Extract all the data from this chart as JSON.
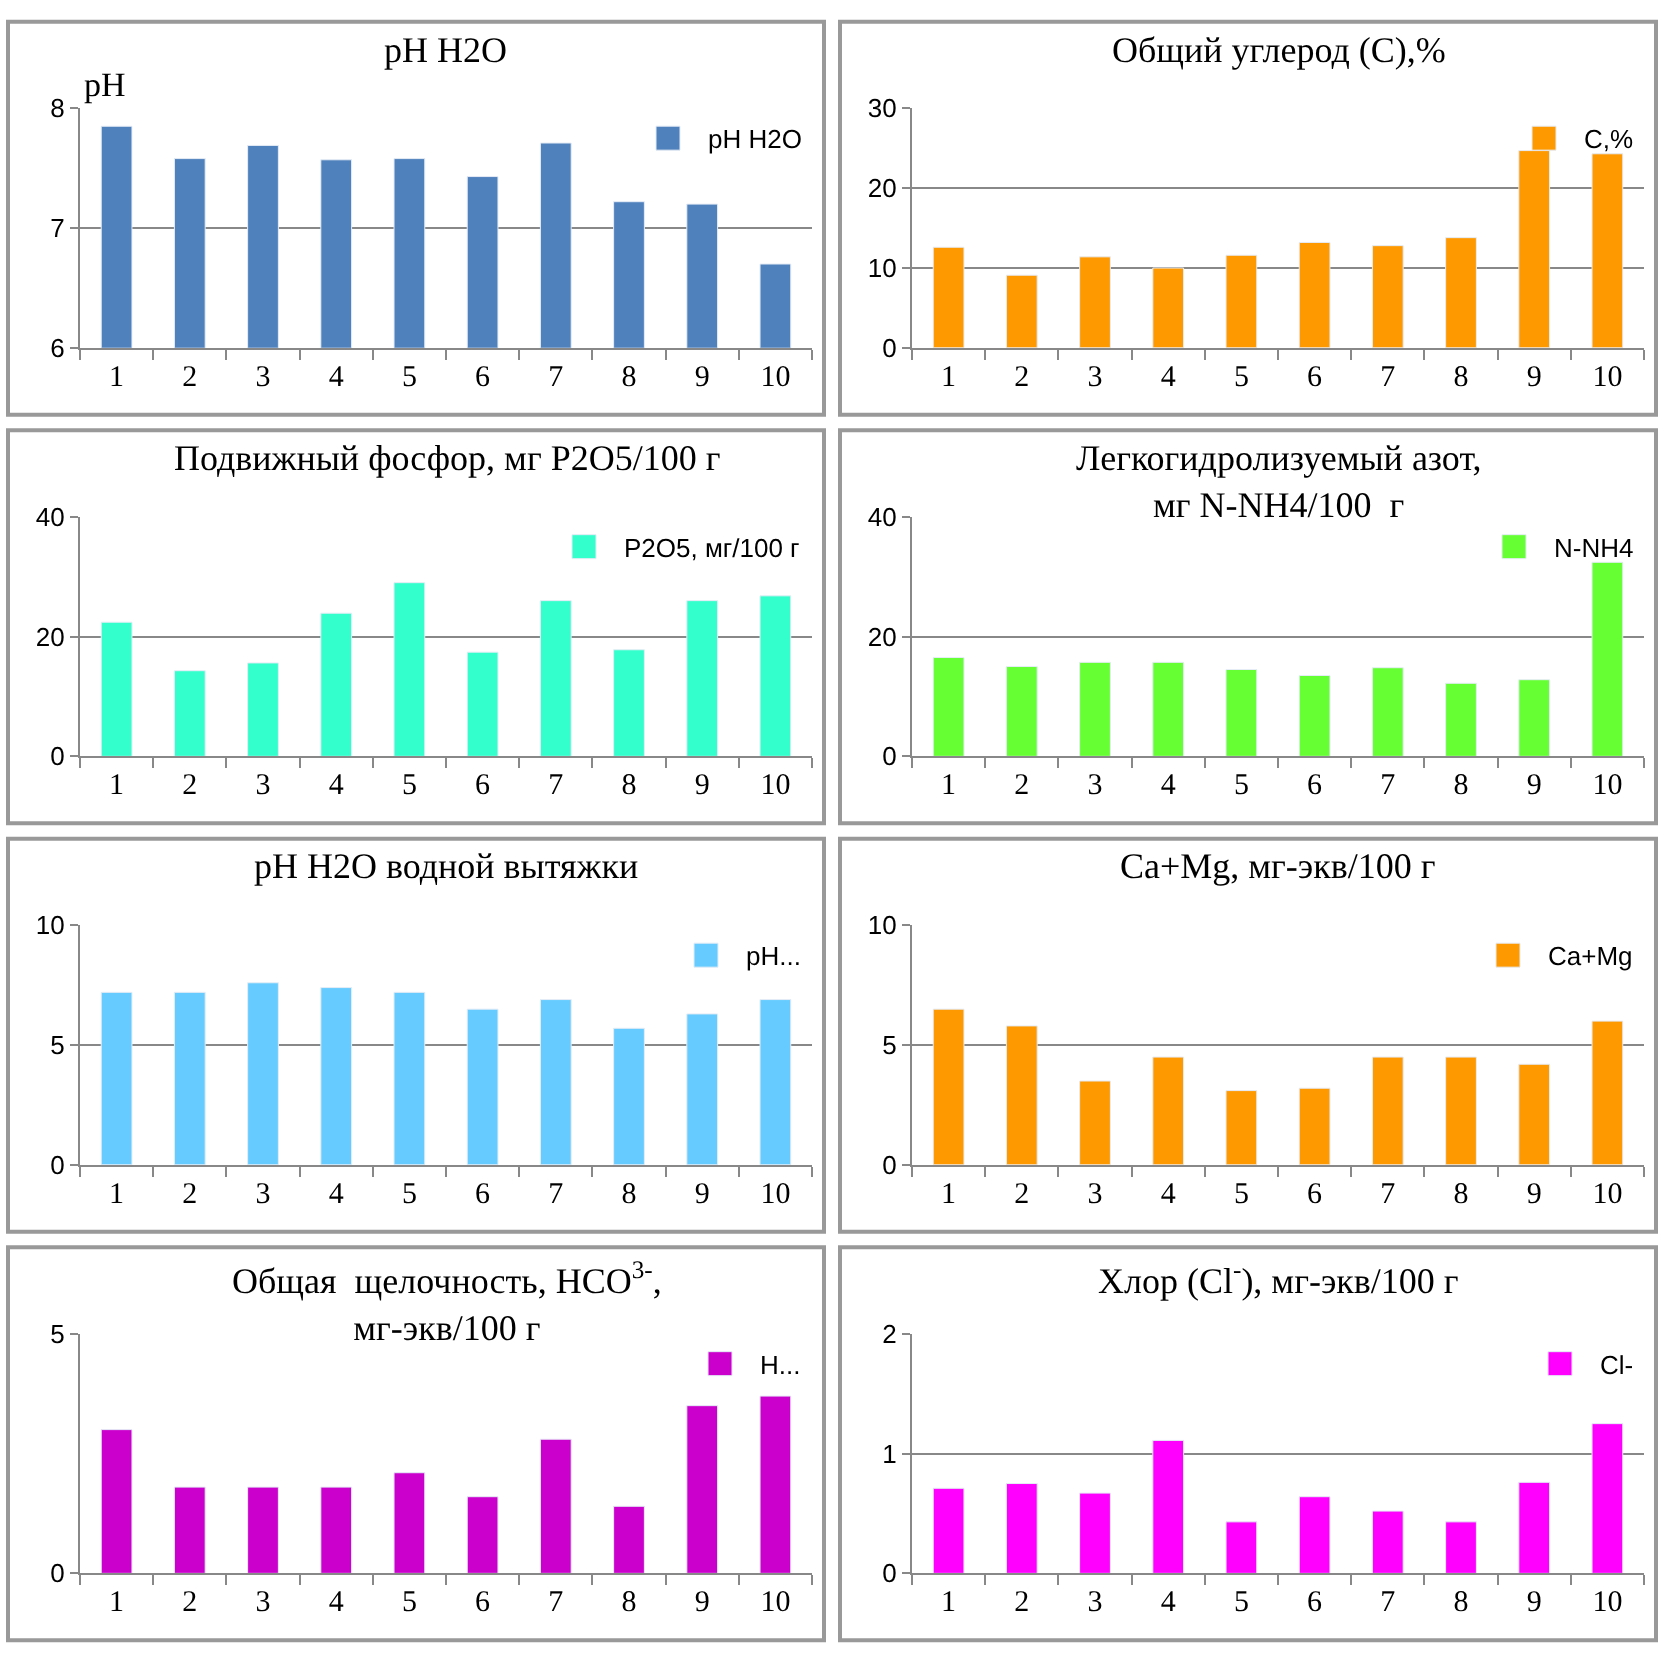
{
  "chart_data": [
    {
      "type": "bar",
      "title": "pH H2O",
      "ylabel": "pH",
      "categories": [
        "1",
        "2",
        "3",
        "4",
        "5",
        "6",
        "7",
        "8",
        "9",
        "10"
      ],
      "series": [
        {
          "name": "pH H2O",
          "color": "#4f81bd",
          "values": [
            7.85,
            7.58,
            7.69,
            7.57,
            7.58,
            7.43,
            7.71,
            7.22,
            7.2,
            6.7
          ]
        }
      ],
      "ylim": [
        6,
        8
      ],
      "yticks": [
        6,
        7,
        8
      ],
      "grid": "y",
      "legend": "top right"
    },
    {
      "type": "bar",
      "title": "Общий углерод (С),%",
      "categories": [
        "1",
        "2",
        "3",
        "4",
        "5",
        "6",
        "7",
        "8",
        "9",
        "10"
      ],
      "series": [
        {
          "name": "С,%",
          "color": "#ff9900",
          "values": [
            12.6,
            9.1,
            11.4,
            10.0,
            11.6,
            13.2,
            12.8,
            13.8,
            24.7,
            24.3
          ]
        }
      ],
      "ylim": [
        0,
        30
      ],
      "yticks": [
        0,
        10,
        20,
        30
      ],
      "grid": "y",
      "legend": "top right"
    },
    {
      "type": "bar",
      "title": "Подвижный фосфор, мг P2O5/100 г",
      "categories": [
        "1",
        "2",
        "3",
        "4",
        "5",
        "6",
        "7",
        "8",
        "9",
        "10"
      ],
      "series": [
        {
          "name": "P2O5, мг/100 г",
          "color": "#33ffcc",
          "values": [
            22.4,
            14.3,
            15.6,
            23.9,
            29.0,
            17.4,
            26.0,
            17.8,
            26.0,
            26.8
          ]
        }
      ],
      "ylim": [
        0,
        40
      ],
      "yticks": [
        0,
        20,
        40
      ],
      "grid": "y",
      "legend": "top right"
    },
    {
      "type": "bar",
      "title": "Легкогидролизуемый азот,\nмг N-NH4/100  г",
      "categories": [
        "1",
        "2",
        "3",
        "4",
        "5",
        "6",
        "7",
        "8",
        "9",
        "10"
      ],
      "series": [
        {
          "name": "N-NH4",
          "color": "#66ff33",
          "values": [
            16.5,
            15.0,
            15.7,
            15.7,
            14.5,
            13.5,
            14.8,
            12.2,
            12.8,
            32.4
          ]
        }
      ],
      "ylim": [
        0,
        40
      ],
      "yticks": [
        0,
        20,
        40
      ],
      "grid": "y",
      "legend": "top right"
    },
    {
      "type": "bar",
      "title": "pH H2O водной вытяжки",
      "categories": [
        "1",
        "2",
        "3",
        "4",
        "5",
        "6",
        "7",
        "8",
        "9",
        "10"
      ],
      "series": [
        {
          "name": "pH...",
          "color": "#66ccff",
          "values": [
            7.2,
            7.2,
            7.6,
            7.4,
            7.2,
            6.5,
            6.9,
            5.7,
            6.3,
            6.9
          ]
        }
      ],
      "ylim": [
        0,
        10
      ],
      "yticks": [
        0,
        5,
        10
      ],
      "grid": "y",
      "legend": "top right"
    },
    {
      "type": "bar",
      "title": "Ca+Mg, мг-экв/100 г",
      "categories": [
        "1",
        "2",
        "3",
        "4",
        "5",
        "6",
        "7",
        "8",
        "9",
        "10"
      ],
      "series": [
        {
          "name": "Ca+Mg",
          "color": "#ff9900",
          "values": [
            6.5,
            5.8,
            3.5,
            4.5,
            3.1,
            3.2,
            4.5,
            4.5,
            4.2,
            6.0
          ]
        }
      ],
      "ylim": [
        0,
        10
      ],
      "yticks": [
        0,
        5,
        10
      ],
      "grid": "y",
      "legend": "top right"
    },
    {
      "type": "bar",
      "title": "Общая  щелочность, HCO$^{3-}$,\nмг-экв/100 г",
      "categories": [
        "1",
        "2",
        "3",
        "4",
        "5",
        "6",
        "7",
        "8",
        "9",
        "10"
      ],
      "series": [
        {
          "name": "H...",
          "color": "#cc00cc",
          "values": [
            3.0,
            1.8,
            1.8,
            1.8,
            2.1,
            1.6,
            2.8,
            1.4,
            3.5,
            3.7
          ]
        }
      ],
      "ylim": [
        0,
        5
      ],
      "yticks": [
        0,
        5
      ],
      "grid": false,
      "legend": "top right"
    },
    {
      "type": "bar",
      "title": "Хлор (Cl$^{-}$), мг-экв/100 г",
      "categories": [
        "1",
        "2",
        "3",
        "4",
        "5",
        "6",
        "7",
        "8",
        "9",
        "10"
      ],
      "series": [
        {
          "name": "Cl-",
          "color": "#ff00ff",
          "values": [
            0.71,
            0.75,
            0.67,
            1.11,
            0.43,
            0.64,
            0.52,
            0.43,
            0.76,
            1.25
          ]
        }
      ],
      "ylim": [
        0,
        2
      ],
      "yticks": [
        0,
        1,
        2
      ],
      "grid": "y",
      "legend": "top right"
    }
  ]
}
